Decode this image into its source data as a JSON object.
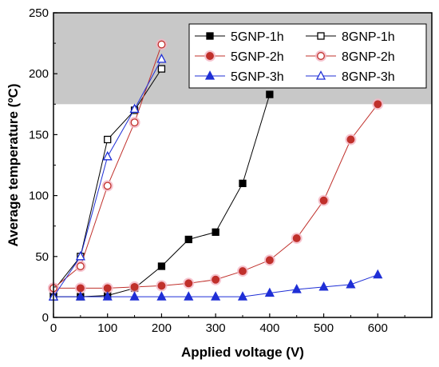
{
  "chart_data": {
    "type": "line",
    "title": "",
    "xlabel": "Applied voltage (V)",
    "ylabel": "Average temperature (ºC)",
    "xlim": [
      0,
      700
    ],
    "ylim": [
      0,
      250
    ],
    "x_ticks": [
      0,
      100,
      200,
      300,
      400,
      500,
      600
    ],
    "y_ticks": [
      0,
      50,
      100,
      150,
      200,
      250
    ],
    "shaded_region": {
      "y_from": 175,
      "y_to": 250,
      "color": "#c8c8c8"
    },
    "grid": false,
    "legend_position": "top-right",
    "legend_columns": 2,
    "legend_order": [
      "5GNP-1h",
      "8GNP-1h",
      "5GNP-2h",
      "8GNP-2h",
      "5GNP-3h",
      "8GNP-3h"
    ],
    "series": [
      {
        "name": "5GNP-1h",
        "color": "#000000",
        "marker": "square",
        "filled": true,
        "x": [
          0,
          50,
          100,
          150,
          200,
          250,
          300,
          350,
          400
        ],
        "y": [
          17,
          17,
          18,
          24,
          42,
          64,
          70,
          110,
          183
        ]
      },
      {
        "name": "8GNP-1h",
        "color": "#000000",
        "marker": "square",
        "filled": false,
        "x": [
          0,
          50,
          100,
          150,
          200
        ],
        "y": [
          22,
          50,
          146,
          170,
          204
        ]
      },
      {
        "name": "5GNP-2h",
        "color": "#c0302b",
        "marker": "circle",
        "filled": true,
        "x": [
          0,
          50,
          100,
          150,
          200,
          250,
          300,
          350,
          400,
          450,
          500,
          550,
          600
        ],
        "y": [
          24,
          24,
          24,
          25,
          26,
          28,
          31,
          38,
          47,
          65,
          96,
          146,
          175
        ]
      },
      {
        "name": "8GNP-2h",
        "color": "#c0302b",
        "marker": "circle",
        "filled": false,
        "x": [
          0,
          50,
          100,
          150,
          200
        ],
        "y": [
          24,
          42,
          108,
          160,
          224
        ]
      },
      {
        "name": "5GNP-3h",
        "color": "#1f2fd6",
        "marker": "triangle",
        "filled": true,
        "x": [
          0,
          50,
          100,
          150,
          200,
          250,
          300,
          350,
          400,
          450,
          500,
          550,
          600
        ],
        "y": [
          17,
          17,
          17,
          17,
          17,
          17,
          17,
          17,
          20,
          23,
          25,
          27,
          35
        ]
      },
      {
        "name": "8GNP-3h",
        "color": "#1f2fd6",
        "marker": "triangle",
        "filled": false,
        "x": [
          0,
          50,
          100,
          150,
          200
        ],
        "y": [
          17,
          50,
          132,
          171,
          212
        ]
      }
    ]
  }
}
